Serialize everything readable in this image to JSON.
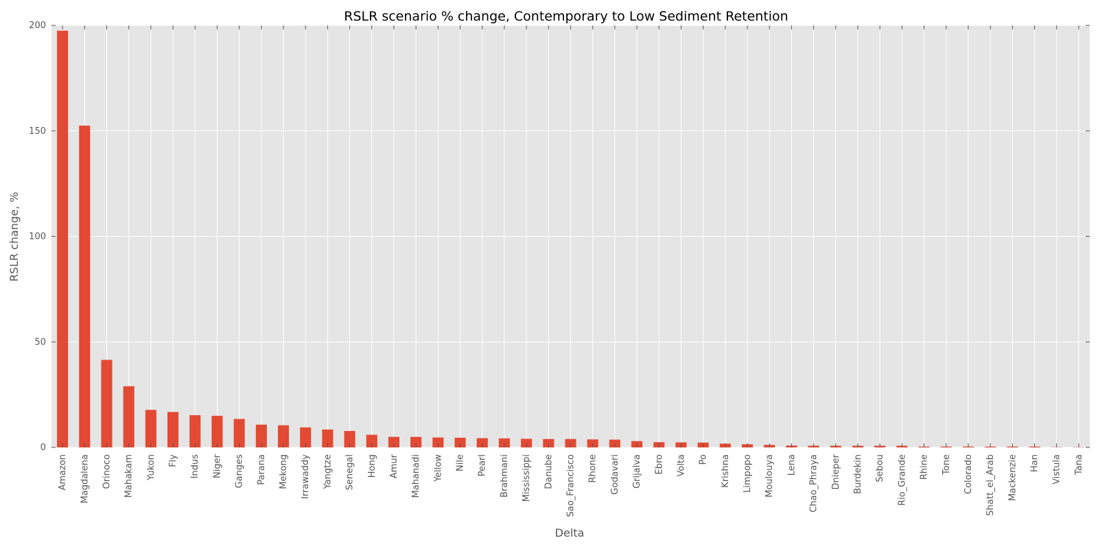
{
  "chart_data": {
    "type": "bar",
    "title": "RSLR scenario % change, Contemporary to Low Sediment Retention",
    "xlabel": "Delta",
    "ylabel": "RSLR change, %",
    "ylim": [
      0,
      200
    ],
    "yticks": [
      0,
      50,
      100,
      150,
      200
    ],
    "grid": true,
    "legend": "none",
    "bar_color": "#E24A33",
    "background_color": "#E5E5E5",
    "grid_color": "#FFFFFF",
    "categories": [
      "Amazon",
      "Magdalena",
      "Orinoco",
      "Mahakam",
      "Yukon",
      "Fly",
      "Indus",
      "Niger",
      "Ganges",
      "Parana",
      "Mekong",
      "Irrawaddy",
      "Yangtze",
      "Senegal",
      "Hong",
      "Amur",
      "Mahanadi",
      "Yellow",
      "Nile",
      "Pearl",
      "Brahmani",
      "Mississippi",
      "Danube",
      "Sao_Francisco",
      "Rhone",
      "Godavari",
      "Grijalva",
      "Ebro",
      "Volta",
      "Po",
      "Krishna",
      "Limpopo",
      "Moulouya",
      "Lena",
      "Chao_Phraya",
      "Dnieper",
      "Burdekin",
      "Sebou",
      "Rio_Grande",
      "Rhine",
      "Tone",
      "Colorado",
      "Shatt_el_Arab",
      "Mackenzie",
      "Han",
      "Vistula",
      "Tana"
    ],
    "values": [
      197.5,
      152.5,
      41.5,
      29.0,
      17.8,
      16.8,
      15.3,
      15.0,
      13.5,
      10.8,
      10.5,
      9.5,
      8.5,
      7.8,
      6.0,
      5.0,
      5.0,
      4.7,
      4.6,
      4.4,
      4.3,
      4.1,
      4.0,
      4.0,
      3.8,
      3.7,
      3.0,
      2.5,
      2.4,
      2.3,
      1.8,
      1.5,
      1.2,
      0.9,
      0.8,
      0.8,
      0.8,
      0.8,
      0.8,
      0.4,
      0.4,
      0.4,
      0.4,
      0.4,
      0.4,
      0.1,
      0.1
    ]
  }
}
